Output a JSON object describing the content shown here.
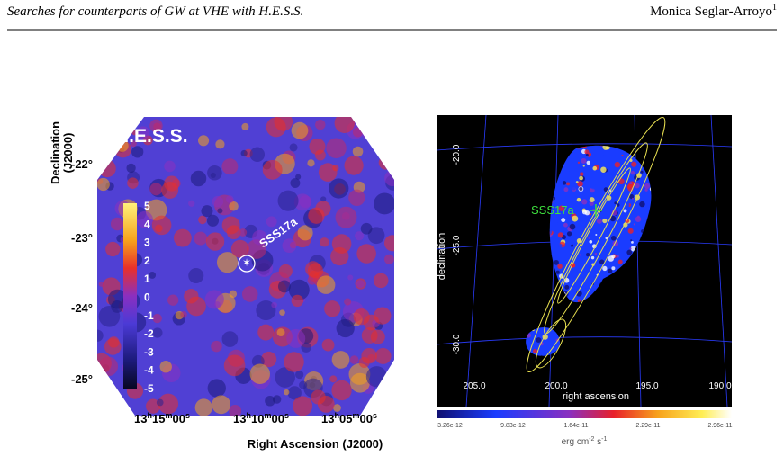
{
  "header": {
    "title": "Searches for counterparts of GW at VHE with H.E.S.S.",
    "author": "Monica Seglar-Arroyo",
    "author_sup": "1"
  },
  "left_figure": {
    "label": "H.E.S.S.",
    "y_axis_label": [
      "Declination",
      "(J2000)"
    ],
    "dec_ticks": [
      "-22°",
      "-23°",
      "-24°",
      "-25°"
    ],
    "ra_ticks": [
      [
        "13",
        "15",
        "00"
      ],
      [
        "13",
        "10",
        "00"
      ],
      [
        "13",
        "05",
        "00"
      ]
    ],
    "ra_units": [
      "h",
      "m",
      "s"
    ],
    "x_axis_label": "Right Ascension (J2000)",
    "source": "SSS17a",
    "colorbar_ticks": [
      "5",
      "4",
      "3",
      "2",
      "1",
      "0",
      "-1",
      "-2",
      "-3",
      "-4",
      "-5"
    ]
  },
  "right_figure": {
    "dec_ticks": [
      "-20.0",
      "-25.0",
      "-30.0"
    ],
    "ra_ticks": [
      "205.0",
      "200.0",
      "195.0",
      "190.0"
    ],
    "y_axis_label": "declination",
    "x_axis_label": "right ascension",
    "source": "SSS17a",
    "colorbar_ticks": [
      "3.26e-12",
      "9.83e-12",
      "1.64e-11",
      "2.29e-11",
      "2.96e-11"
    ],
    "unit": [
      "erg cm",
      "-2",
      " s",
      "-1"
    ]
  }
}
